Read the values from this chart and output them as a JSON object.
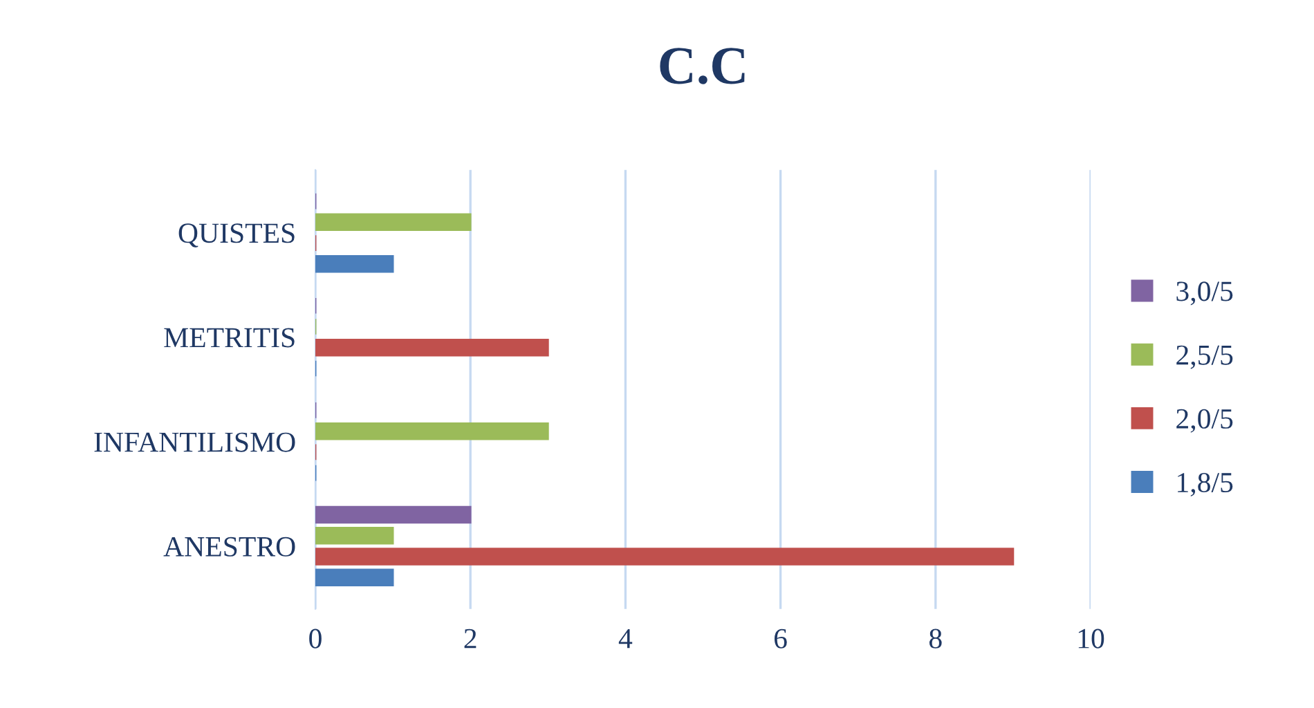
{
  "chart_data": {
    "type": "bar",
    "orientation": "horizontal",
    "title": "C.C",
    "categories": [
      "QUISTES",
      "METRITIS",
      "INFANTILISMO",
      "ANESTRO"
    ],
    "series": [
      {
        "name": "1,8/5",
        "color": "#4a7ebb",
        "values": [
          1,
          0,
          0,
          1
        ]
      },
      {
        "name": "2,0/5",
        "color": "#c0504d",
        "values": [
          0,
          3,
          0,
          9
        ]
      },
      {
        "name": "2,5/5",
        "color": "#9bbb59",
        "values": [
          2,
          0,
          3,
          1
        ]
      },
      {
        "name": "3,0/5",
        "color": "#8064a2",
        "values": [
          0,
          0,
          0,
          2
        ]
      }
    ],
    "xlim": [
      0,
      10
    ],
    "xticks": [
      0,
      2,
      4,
      6,
      8,
      10
    ],
    "grid": "x",
    "legend": "right"
  }
}
